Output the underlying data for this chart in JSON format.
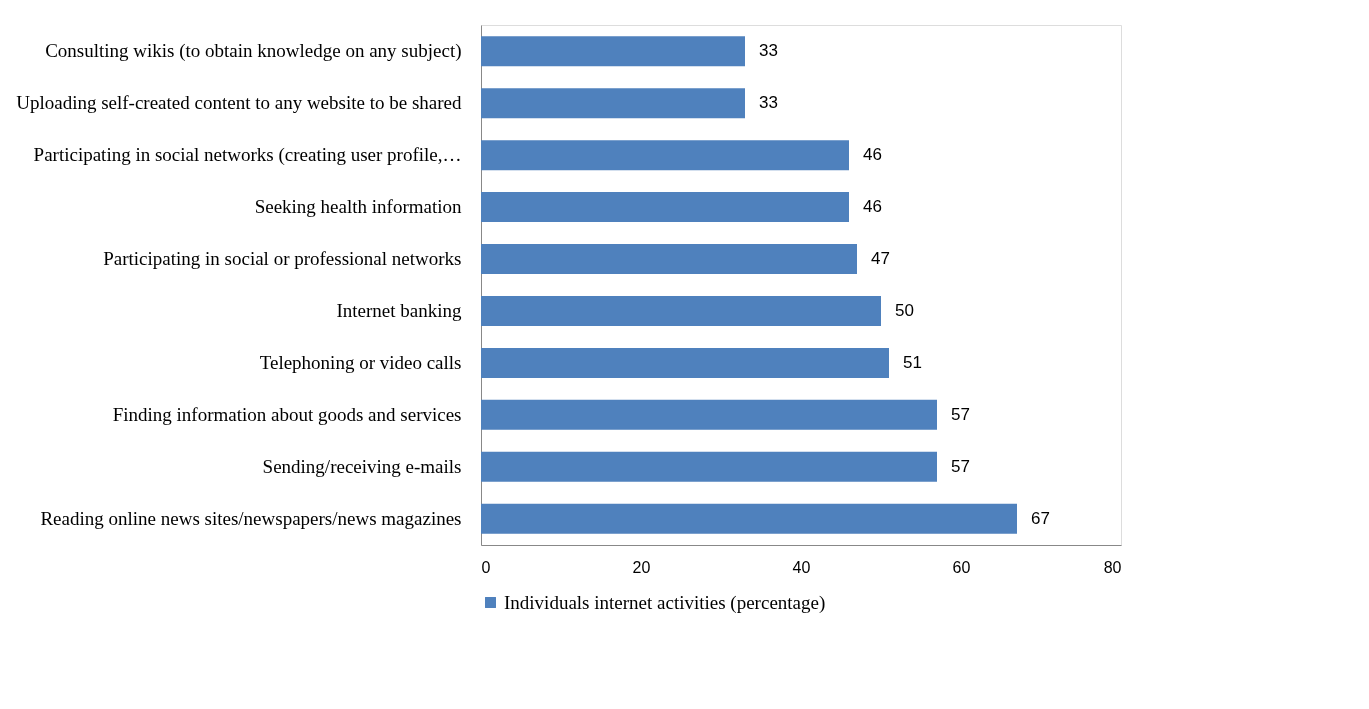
{
  "chart_data": {
    "type": "bar",
    "orientation": "horizontal",
    "categories": [
      "Consulting wikis (to obtain knowledge on any subject)",
      "Uploading self-created content to any website to be shared",
      "Participating in social networks (creating user profile,…",
      "Seeking health information",
      "Participating in social or professional networks",
      "Internet banking",
      "Telephoning or video calls",
      "Finding information about goods and services",
      "Sending/receiving e-mails",
      "Reading online news sites/newspapers/news magazines"
    ],
    "series": [
      {
        "name": "Individuals internet activities (percentage)",
        "color": "#4f81bd",
        "values": [
          33,
          33,
          46,
          46,
          47,
          50,
          51,
          57,
          57,
          67
        ]
      }
    ],
    "xlim": [
      0,
      80
    ],
    "xticks": [
      0,
      20,
      40,
      60,
      80
    ],
    "grid": false,
    "legend": "bottom",
    "data_labels": true
  }
}
